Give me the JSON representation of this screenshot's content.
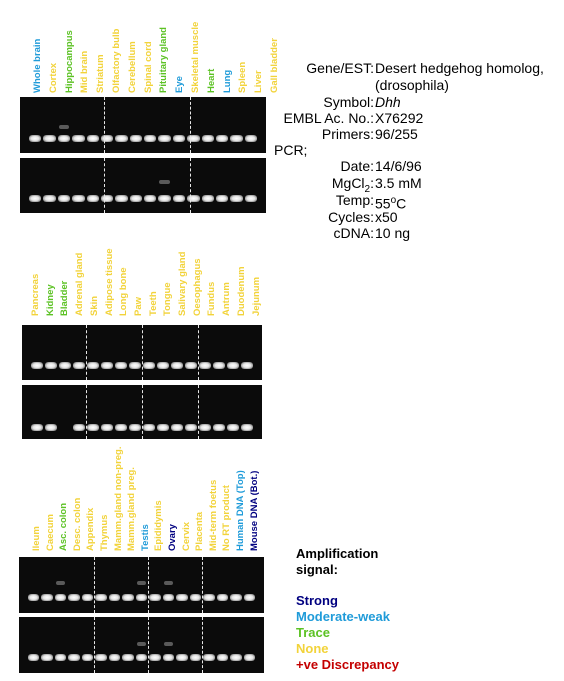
{
  "colors": {
    "strong": "#000080",
    "moderate": "#1f9bd9",
    "trace": "#5cc224",
    "none": "#f2d33a",
    "discrepancy": "#c40000"
  },
  "panels": [
    {
      "lanes": [
        {
          "label": "Whole brain",
          "signal": "moderate"
        },
        {
          "label": "Cortex",
          "signal": "none"
        },
        {
          "label": "Hippocampus",
          "signal": "trace"
        },
        {
          "label": "Mid brain",
          "signal": "none"
        },
        {
          "label": "Striatum",
          "signal": "none"
        },
        {
          "label": "Olfactory bulb",
          "signal": "none"
        },
        {
          "label": "Cerebellum",
          "signal": "none"
        },
        {
          "label": "Spinal cord",
          "signal": "none"
        },
        {
          "label": "Pituitary gland",
          "signal": "trace"
        },
        {
          "label": "Eye",
          "signal": "moderate"
        },
        {
          "label": "Skeletal muscle",
          "signal": "none"
        },
        {
          "label": "Heart",
          "signal": "trace"
        },
        {
          "label": "Lung",
          "signal": "moderate"
        },
        {
          "label": "Spleen",
          "signal": "none"
        },
        {
          "label": "Liver",
          "signal": "none"
        },
        {
          "label": "Gall bladder",
          "signal": "none"
        }
      ]
    },
    {
      "lanes": [
        {
          "label": "Pancreas",
          "signal": "none"
        },
        {
          "label": "Kidney",
          "signal": "trace"
        },
        {
          "label": "Bladder",
          "signal": "trace"
        },
        {
          "label": "Adrenal gland",
          "signal": "none"
        },
        {
          "label": "Skin",
          "signal": "none"
        },
        {
          "label": "Adipose tissue",
          "signal": "none"
        },
        {
          "label": "Long bone",
          "signal": "none"
        },
        {
          "label": "Paw",
          "signal": "none"
        },
        {
          "label": "Teeth",
          "signal": "none"
        },
        {
          "label": "Tongue",
          "signal": "none"
        },
        {
          "label": "Salivary gland",
          "signal": "none"
        },
        {
          "label": "Oesophagus",
          "signal": "none"
        },
        {
          "label": "Fundus",
          "signal": "none"
        },
        {
          "label": "Antrum",
          "signal": "none"
        },
        {
          "label": "Duodenum",
          "signal": "none"
        },
        {
          "label": "Jejunum",
          "signal": "none"
        }
      ]
    },
    {
      "lanes": [
        {
          "label": "Ileum",
          "signal": "none"
        },
        {
          "label": "Caecum",
          "signal": "none"
        },
        {
          "label": "Asc. colon",
          "signal": "trace"
        },
        {
          "label": "Desc. colon",
          "signal": "none"
        },
        {
          "label": "Appendix",
          "signal": "none"
        },
        {
          "label": "Thymus",
          "signal": "none"
        },
        {
          "label": "Mamm.gland non-preg.",
          "signal": "none"
        },
        {
          "label": "Mamm.gland preg.",
          "signal": "none"
        },
        {
          "label": "Testis",
          "signal": "moderate"
        },
        {
          "label": "Epididymis",
          "signal": "none"
        },
        {
          "label": "Ovary",
          "signal": "strong"
        },
        {
          "label": "Cervix",
          "signal": "none"
        },
        {
          "label": "Placenta",
          "signal": "none"
        },
        {
          "label": "Mid-term foetus",
          "signal": "none"
        },
        {
          "label": "No RT product",
          "signal": "none"
        },
        {
          "label": "Human DNA (Top)",
          "signal": "moderate"
        },
        {
          "label": "Mouse DNA (Bot.)",
          "signal": "strong"
        }
      ]
    }
  ],
  "info": {
    "gene_key": "Gene/EST:",
    "gene_value_line1": "Desert hedgehog homolog,",
    "gene_value_line2": "(drosophila)",
    "symbol_key": "Symbol:",
    "symbol_value": "Dhh",
    "embl_key": "EMBL Ac. No.:",
    "embl_value": "X76292",
    "primers_key": "Primers:",
    "primers_value": "96/255",
    "pcr_label": "PCR;",
    "date_key": "Date:",
    "date_value": "14/6/96",
    "mgcl_key_main": "MgCl",
    "mgcl_key_sub": "2",
    "mgcl_key_end": ":",
    "mgcl_value": "3.5 mM",
    "temp_key": "Temp:",
    "temp_value_num": "55",
    "temp_value_sup": "o",
    "temp_value_unit": "C",
    "cycles_key": "Cycles:",
    "cycles_value": "x50",
    "cdna_key": "cDNA:",
    "cdna_value": "10 ng"
  },
  "legend": {
    "title_line1": "Amplification",
    "title_line2": "signal:",
    "strong": "Strong",
    "moderate": "Moderate-weak",
    "trace": "Trace",
    "none": "None",
    "discrepancy": "+ve Discrepancy"
  }
}
